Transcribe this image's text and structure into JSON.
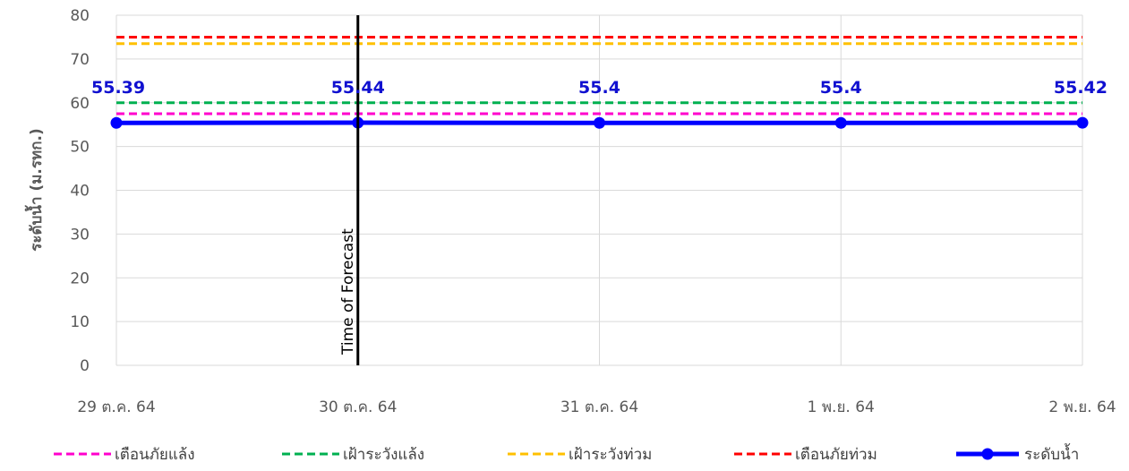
{
  "chart_data": {
    "type": "line",
    "title": "",
    "xlabel": "",
    "ylabel": "ระดับน้ำ (ม.รทก.)",
    "categories": [
      "29 ต.ค. 64",
      "30 ต.ค. 64",
      "31 ต.ค. 64",
      "1 พ.ย. 64",
      "2 พ.ย. 64"
    ],
    "ylim": [
      0,
      80
    ],
    "yticks": [
      0,
      10,
      20,
      30,
      40,
      50,
      60,
      70,
      80
    ],
    "grid": true,
    "legend_position": "bottom",
    "series": [
      {
        "name": "เตือนภัยแล้ง",
        "values": [
          57.5,
          57.5,
          57.5,
          57.5,
          57.5
        ],
        "color": "#ff00cc",
        "style": "dashed"
      },
      {
        "name": "เฝ้าระวังแล้ง",
        "values": [
          60,
          60,
          60,
          60,
          60
        ],
        "color": "#00b050",
        "style": "dashed"
      },
      {
        "name": "เฝ้าระวังท่วม",
        "values": [
          73.5,
          73.5,
          73.5,
          73.5,
          73.5
        ],
        "color": "#ffc000",
        "style": "dashed"
      },
      {
        "name": "เตือนภัยท่วม",
        "values": [
          75,
          75,
          75,
          75,
          75
        ],
        "color": "#ff0000",
        "style": "dashed"
      },
      {
        "name": "ระดับน้ำ",
        "values": [
          55.39,
          55.44,
          55.4,
          55.4,
          55.42
        ],
        "color": "#0000ff",
        "style": "solid-markers"
      }
    ],
    "data_labels": [
      "55.39",
      "55.44",
      "55.4",
      "55.4",
      "55.42"
    ],
    "annotation": {
      "label": "Time of Forecast",
      "at_category": "30 ต.ค. 64"
    }
  }
}
